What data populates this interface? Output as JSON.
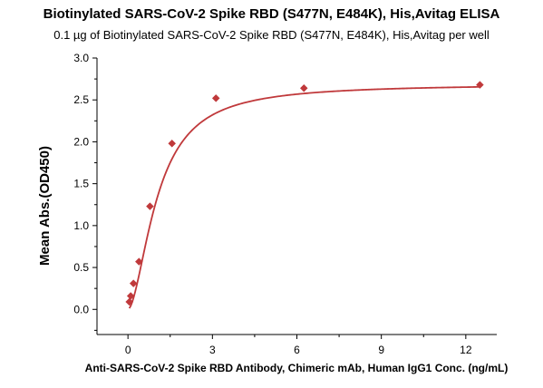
{
  "chart_data": {
    "type": "scatter",
    "title": "Biotinylated SARS-CoV-2 Spike RBD (S477N, E484K), His,Avitag ELISA",
    "subtitle": "0.1 µg of Biotinylated SARS-CoV-2 Spike RBD (S477N, E484K), His,Avitag per well",
    "xlabel": "Anti-SARS-CoV-2 Spike RBD Antibody, Chimeric mAb, Human IgG1 Conc. (ng/mL)",
    "ylabel": "Mean Abs.(OD450)",
    "xlim": [
      -1.1,
      13.1
    ],
    "ylim": [
      -0.3,
      3.0
    ],
    "x_ticks": [
      0,
      3,
      6,
      9,
      12
    ],
    "y_ticks": [
      0.0,
      0.5,
      1.0,
      1.5,
      2.0,
      2.5,
      3.0
    ],
    "x_tick_labels": [
      "0",
      "3",
      "6",
      "9",
      "12"
    ],
    "y_tick_labels": [
      "0.0",
      "0.5",
      "1.0",
      "1.5",
      "2.0",
      "2.5",
      "3.0"
    ],
    "grid": false,
    "series": [
      {
        "x": [
          0.049,
          0.098,
          0.195,
          0.391,
          0.781,
          1.563,
          3.125,
          6.25,
          12.5
        ],
        "y": [
          0.09,
          0.16,
          0.31,
          0.57,
          1.23,
          1.98,
          2.52,
          2.64,
          2.68
        ],
        "marker": "diamond",
        "fit": "4PL",
        "color": "#C0393B"
      }
    ]
  }
}
